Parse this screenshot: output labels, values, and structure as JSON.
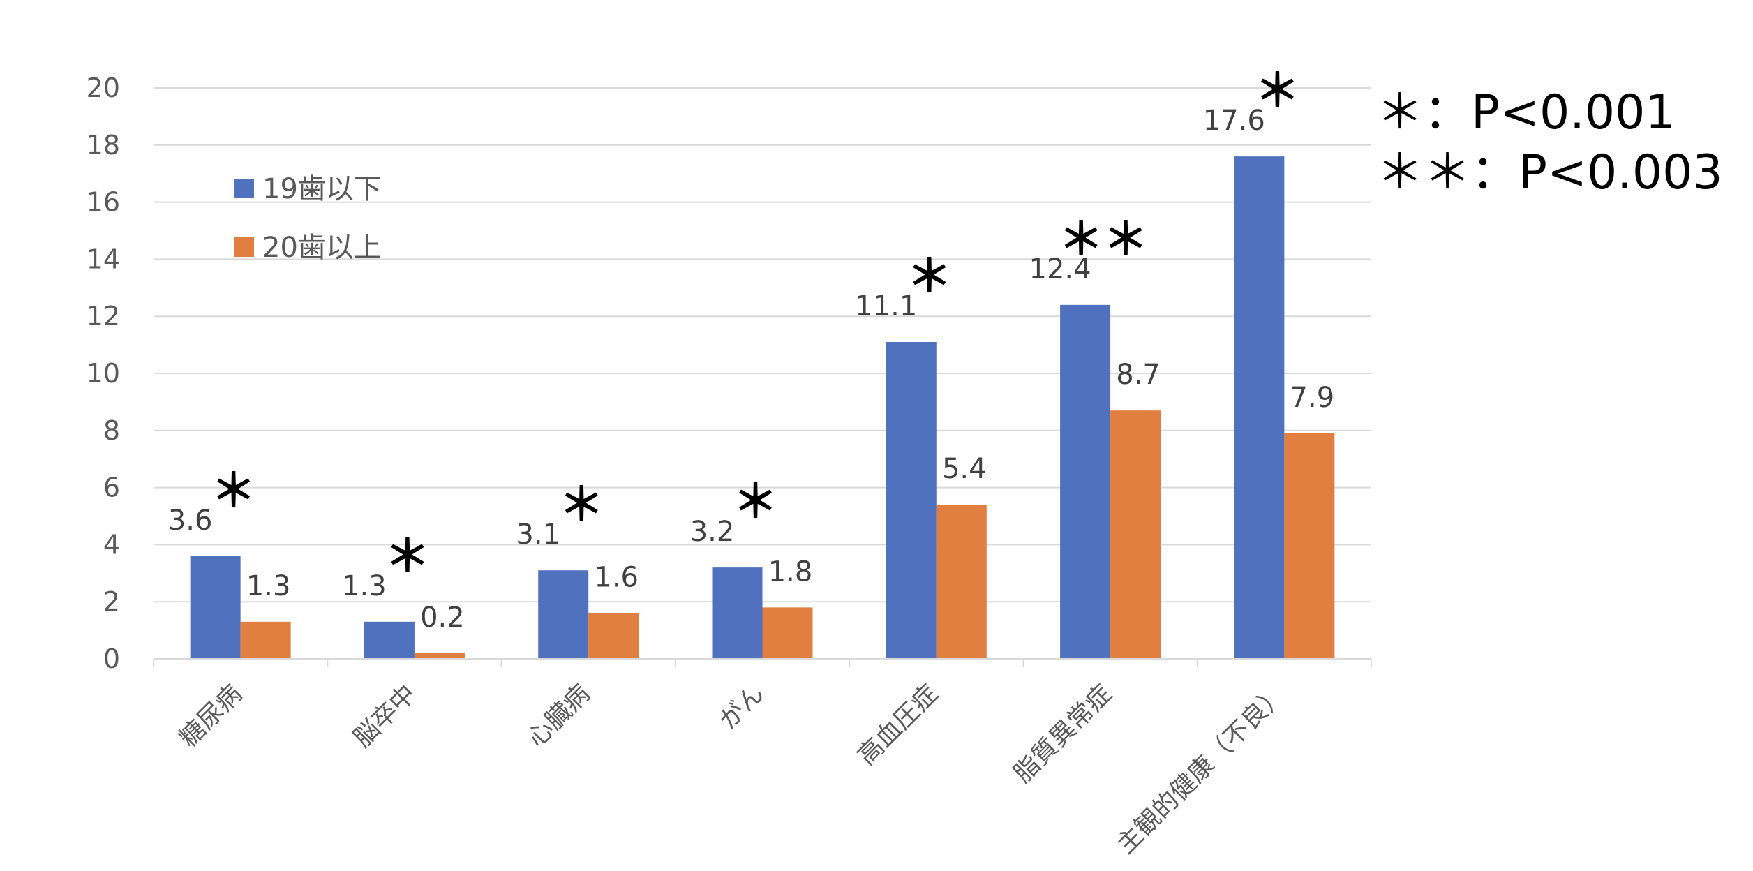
{
  "chart_data": {
    "type": "bar",
    "categories": [
      "糖尿病",
      "脳卒中",
      "心臓病",
      "がん",
      "高血圧症",
      "脂質異常症",
      "主観的健康（不良）"
    ],
    "series": [
      {
        "name": "19歯以下",
        "color": "#4F71BE",
        "values": [
          3.6,
          1.3,
          3.1,
          3.2,
          11.1,
          12.4,
          17.6
        ]
      },
      {
        "name": "20歯以上",
        "color": "#E07F40",
        "values": [
          1.3,
          0.2,
          1.6,
          1.8,
          5.4,
          8.7,
          7.9
        ]
      }
    ],
    "significance": [
      "＊",
      "＊",
      "＊",
      "＊",
      "＊",
      "＊＊",
      "＊"
    ],
    "ylim": [
      0,
      20
    ],
    "yticks": [
      0,
      2,
      4,
      6,
      8,
      10,
      12,
      14,
      16,
      18,
      20
    ],
    "grid": true,
    "legend_position": "upper-left",
    "notes": [
      "＊：P<0.001",
      "＊＊：P<0.003"
    ]
  }
}
